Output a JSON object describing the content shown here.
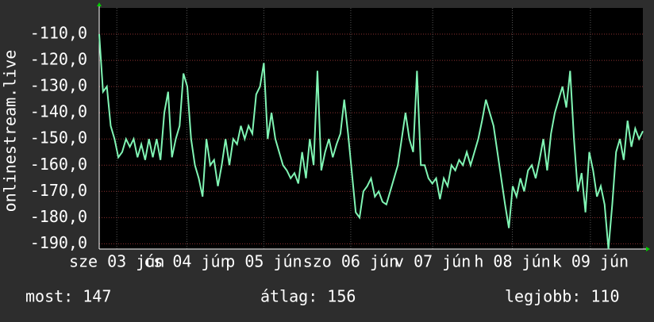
{
  "chart_data": {
    "type": "line",
    "y_label": "onlinestream.live",
    "series": [
      {
        "color": "#80f5b4",
        "values": [
          -110,
          -132,
          -130,
          -145,
          -150,
          -157,
          -155,
          -150,
          -153,
          -150,
          -157,
          -152,
          -158,
          -150,
          -157,
          -150,
          -158,
          -140,
          -132,
          -157,
          -150,
          -145,
          -125,
          -130,
          -150,
          -160,
          -165,
          -172,
          -150,
          -160,
          -158,
          -168,
          -160,
          -150,
          -160,
          -150,
          -152,
          -145,
          -150,
          -145,
          -148,
          -133,
          -130,
          -121,
          -150,
          -140,
          -150,
          -155,
          -160,
          -162,
          -165,
          -163,
          -167,
          -155,
          -165,
          -150,
          -160,
          -124,
          -162,
          -155,
          -150,
          -157,
          -152,
          -148,
          -135,
          -148,
          -163,
          -178,
          -180,
          -170,
          -168,
          -165,
          -172,
          -170,
          -174,
          -175,
          -170,
          -165,
          -160,
          -150,
          -140,
          -150,
          -155,
          -124,
          -160,
          -160,
          -165,
          -167,
          -165,
          -173,
          -165,
          -168,
          -160,
          -162,
          -158,
          -160,
          -155,
          -160,
          -155,
          -150,
          -143,
          -135,
          -140,
          -145,
          -155,
          -165,
          -175,
          -184,
          -168,
          -172,
          -165,
          -170,
          -162,
          -160,
          -165,
          -158,
          -150,
          -162,
          -148,
          -140,
          -135,
          -130,
          -138,
          -124,
          -150,
          -170,
          -163,
          -178,
          -155,
          -162,
          -172,
          -168,
          -175,
          -192,
          -175,
          -155,
          -150,
          -158,
          -143,
          -153,
          -146,
          -150,
          -147
        ]
      }
    ],
    "xlim": [
      0,
      142
    ],
    "xticks": [
      {
        "value": 4.6,
        "label": "sze 03 jún"
      },
      {
        "value": 22.9,
        "label": "cs 04 jún"
      },
      {
        "value": 43,
        "label": "p 05 jún"
      },
      {
        "value": 65.7,
        "label": "szo 06 jún"
      },
      {
        "value": 87.1,
        "label": "v 07 jún"
      },
      {
        "value": 107.9,
        "label": "h 08 jún"
      },
      {
        "value": 128.3,
        "label": "k 09 jún"
      }
    ],
    "ylim": [
      -192,
      -100
    ],
    "yticks": [
      {
        "value": -110,
        "label": "-110,0"
      },
      {
        "value": -120,
        "label": "-120,0"
      },
      {
        "value": -130,
        "label": "-130,0"
      },
      {
        "value": -140,
        "label": "-140,0"
      },
      {
        "value": -150,
        "label": "-150,0"
      },
      {
        "value": -160,
        "label": "-160,0"
      },
      {
        "value": -170,
        "label": "-170,0"
      },
      {
        "value": -180,
        "label": "-180,0"
      },
      {
        "value": -190,
        "label": "-190,0"
      }
    ],
    "grid": true
  },
  "footer": {
    "current": "most: 147",
    "average": "átlag: 156",
    "best": "legjobb: 110"
  }
}
